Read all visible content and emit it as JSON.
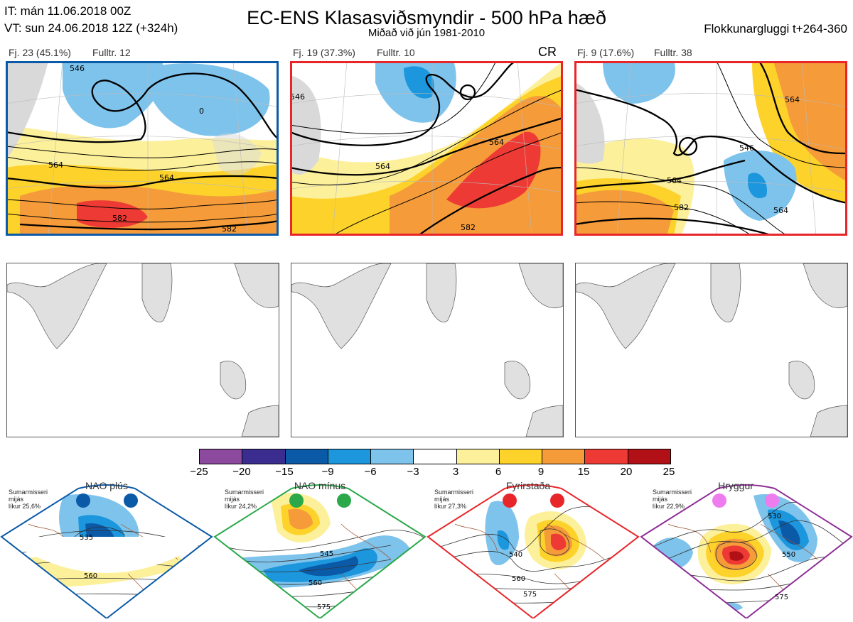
{
  "header": {
    "it_line": "IT: mán 11.06.2018 00Z",
    "vt_line": "VT: sun 24.06.2018 12Z  (+324h)",
    "title": "EC-ENS Klasasviðsmyndir - 500 hPa hæð",
    "subtitle": "Miðað við jún 1981-2010",
    "window": "Flokkunargluggi t+264-360"
  },
  "panels": [
    {
      "label": "Fj. 23 (45.1%)",
      "member": "Fulltr. 12",
      "frame_color": "#0b5aa8",
      "contour_labels": [
        "546",
        "564",
        "582",
        "582",
        "0",
        "564"
      ],
      "tag": ""
    },
    {
      "label": "Fj. 19 (37.3%)",
      "member": "Fulltr. 10",
      "frame_color": "#e8262a",
      "contour_labels": [
        "546",
        "564",
        "564",
        "582"
      ],
      "tag": "CR"
    },
    {
      "label": "Fj. 9 (17.6%)",
      "member": "Fulltr. 38",
      "frame_color": "#e8262a",
      "contour_labels": [
        "546",
        "564",
        "564",
        "582",
        "564"
      ],
      "tag": ""
    }
  ],
  "colorbar": {
    "ticks": [
      "−25",
      "−20",
      "−15",
      "−9",
      "−6",
      "−3",
      "3",
      "6",
      "9",
      "15",
      "20",
      "25"
    ],
    "colors": [
      "#8b4a9e",
      "#3a2d8f",
      "#0b5aa8",
      "#1c96dd",
      "#7ec3ec",
      "#ffffff",
      "#fdf09a",
      "#fdd22a",
      "#f59b39",
      "#ee3a34",
      "#b01016"
    ]
  },
  "regimes": [
    {
      "name": "NAO plús",
      "season": "Sumarmisseri",
      "scope": "mijás",
      "likelihood": "líkur 25,6%",
      "frame_color": "#0b5aa8",
      "dot_color": "#0b5aa8",
      "contour_labels": [
        "535",
        "560"
      ]
    },
    {
      "name": "NAO mínus",
      "season": "Sumarmisseri",
      "scope": "mijás",
      "likelihood": "líkur 24,2%",
      "frame_color": "#2aa84a",
      "dot_color": "#2aa84a",
      "contour_labels": [
        "545",
        "560",
        "575"
      ]
    },
    {
      "name": "Fyrirstaða",
      "season": "Sumarmisseri",
      "scope": "mijás",
      "likelihood": "líkur 27,3%",
      "frame_color": "#e8262a",
      "dot_color": "#e8262a",
      "contour_labels": [
        "540",
        "560",
        "575"
      ]
    },
    {
      "name": "Hryggur",
      "season": "Sumarmisseri",
      "scope": "mijás",
      "likelihood": "líkur 22,9%",
      "frame_color": "#8e2e96",
      "dot_color": "#ee7cee",
      "contour_labels": [
        "530",
        "550",
        "575"
      ]
    }
  ]
}
